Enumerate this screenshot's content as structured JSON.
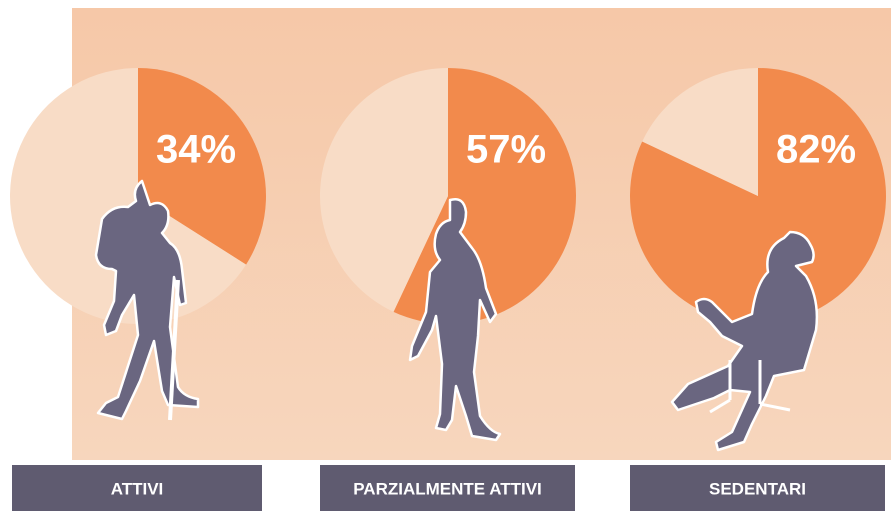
{
  "chart_data": [
    {
      "type": "pie",
      "title": "ATTIVI",
      "values": [
        34,
        66
      ],
      "value_labels": [
        "34%",
        null
      ],
      "colors": [
        "#f28a4c",
        "#f8dcc6"
      ]
    },
    {
      "type": "pie",
      "title": "PARZIALMENTE ATTIVI",
      "values": [
        57,
        43
      ],
      "value_labels": [
        "57%",
        null
      ],
      "colors": [
        "#f28a4c",
        "#f8dcc6"
      ]
    },
    {
      "type": "pie",
      "title": "SEDENTARI",
      "values": [
        82,
        18
      ],
      "value_labels": [
        "82%",
        null
      ],
      "colors": [
        "#f28a4c",
        "#f8dcc6"
      ]
    }
  ]
}
